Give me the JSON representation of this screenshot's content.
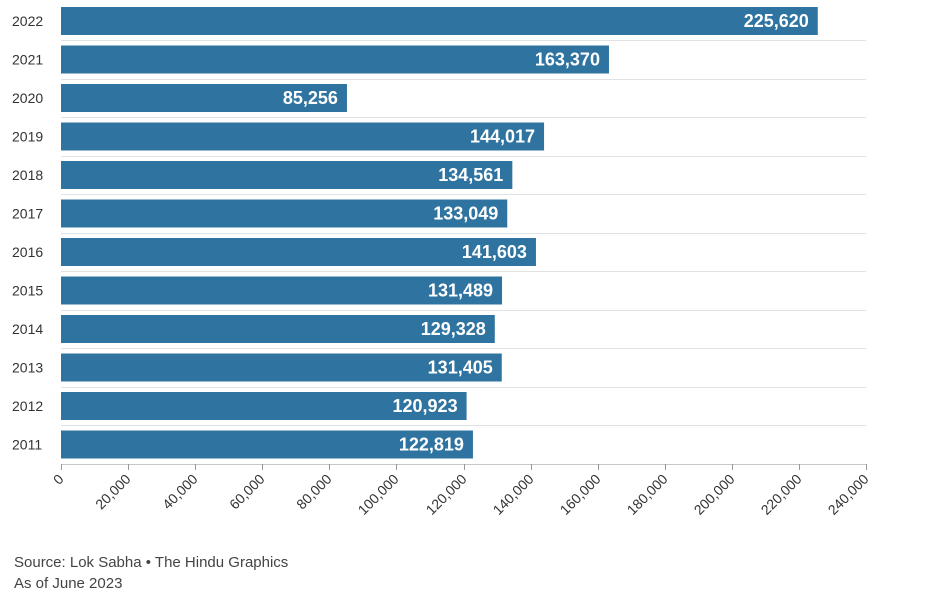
{
  "chart_data": {
    "type": "bar",
    "orientation": "horizontal",
    "categories": [
      "2022",
      "2021",
      "2020",
      "2019",
      "2018",
      "2017",
      "2016",
      "2015",
      "2014",
      "2013",
      "2012",
      "2011"
    ],
    "values": [
      225620,
      163370,
      85256,
      144017,
      134561,
      133049,
      141603,
      131489,
      129328,
      131405,
      120923,
      122819
    ],
    "value_labels": [
      "225,620",
      "163,370",
      "85,256",
      "144,017",
      "134,561",
      "133,049",
      "141,603",
      "131,489",
      "129,328",
      "131,405",
      "120,923",
      "122,819"
    ],
    "xlim": [
      0,
      240000
    ],
    "x_ticks": [
      0,
      20000,
      40000,
      60000,
      80000,
      100000,
      120000,
      140000,
      160000,
      180000,
      200000,
      220000,
      240000
    ],
    "x_tick_labels": [
      "0",
      "20,000",
      "40,000",
      "60,000",
      "80,000",
      "100,000",
      "120,000",
      "140,000",
      "160,000",
      "180,000",
      "200,000",
      "220,000",
      "240,000"
    ],
    "grid": true,
    "bar_color": "#2f74a0",
    "gridline_color": "#e2e2e2",
    "label_color": "#ffffff"
  },
  "footer": {
    "source": "Source: Lok Sabha • The Hindu Graphics",
    "note": "As of June 2023"
  }
}
